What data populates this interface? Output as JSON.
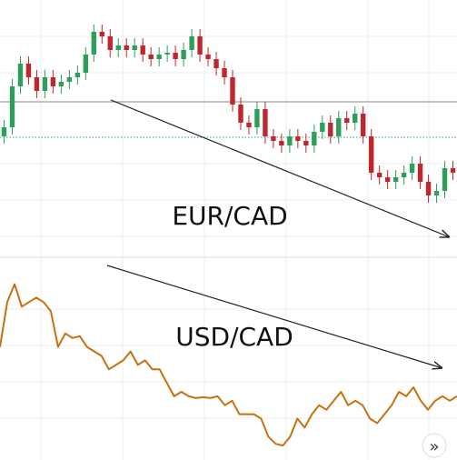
{
  "chart_data": [
    {
      "type": "candlestick",
      "annotation": "EUR/CAD",
      "up_color": "#2e9e5b",
      "down_color": "#c0262c",
      "ylim": [
        0,
        280
      ],
      "open": [
        130,
        140,
        185,
        210,
        195,
        180,
        195,
        185,
        190,
        195,
        200,
        220,
        245,
        240,
        225,
        230,
        225,
        230,
        220,
        215,
        220,
        222,
        215,
        225,
        240,
        220,
        215,
        205,
        195,
        165,
        145,
        140,
        160,
        130,
        125,
        120,
        130,
        125,
        120,
        135,
        145,
        130,
        150,
        145,
        155,
        130,
        90,
        85,
        80,
        85,
        90,
        100,
        80,
        65,
        70,
        95
      ],
      "high": [
        148,
        193,
        218,
        218,
        203,
        203,
        203,
        198,
        203,
        208,
        228,
        253,
        253,
        248,
        238,
        238,
        238,
        238,
        228,
        228,
        230,
        230,
        233,
        248,
        248,
        228,
        223,
        213,
        203,
        173,
        153,
        168,
        168,
        138,
        133,
        138,
        138,
        133,
        143,
        153,
        153,
        158,
        158,
        163,
        163,
        138,
        98,
        93,
        93,
        98,
        108,
        108,
        88,
        78,
        103,
        103
      ],
      "low": [
        122,
        132,
        177,
        187,
        172,
        172,
        177,
        177,
        182,
        187,
        192,
        212,
        232,
        217,
        217,
        217,
        217,
        212,
        207,
        207,
        212,
        207,
        207,
        217,
        212,
        207,
        197,
        187,
        157,
        137,
        132,
        132,
        122,
        117,
        112,
        112,
        117,
        112,
        112,
        127,
        122,
        122,
        137,
        137,
        122,
        82,
        77,
        72,
        72,
        77,
        82,
        72,
        57,
        57,
        62,
        82
      ],
      "close": [
        140,
        185,
        210,
        195,
        180,
        195,
        185,
        190,
        195,
        200,
        220,
        245,
        240,
        225,
        230,
        225,
        230,
        220,
        215,
        220,
        222,
        215,
        225,
        240,
        220,
        215,
        205,
        195,
        165,
        145,
        140,
        160,
        130,
        125,
        120,
        130,
        125,
        120,
        135,
        145,
        130,
        150,
        145,
        155,
        130,
        90,
        85,
        80,
        85,
        90,
        100,
        80,
        65,
        70,
        95,
        90
      ]
    },
    {
      "type": "line",
      "annotation": "USD/CAD",
      "color": "#c8700f",
      "ylim": [
        0,
        220
      ],
      "values": [
        120,
        170,
        190,
        165,
        170,
        175,
        170,
        160,
        120,
        135,
        130,
        132,
        120,
        115,
        110,
        95,
        100,
        105,
        115,
        100,
        105,
        95,
        95,
        80,
        65,
        70,
        65,
        63,
        64,
        63,
        65,
        55,
        60,
        45,
        45,
        45,
        40,
        20,
        12,
        10,
        20,
        40,
        30,
        45,
        55,
        50,
        60,
        70,
        55,
        60,
        55,
        40,
        35,
        45,
        55,
        70,
        65,
        75,
        60,
        50,
        60,
        65,
        60,
        65
      ]
    }
  ],
  "button": "»"
}
